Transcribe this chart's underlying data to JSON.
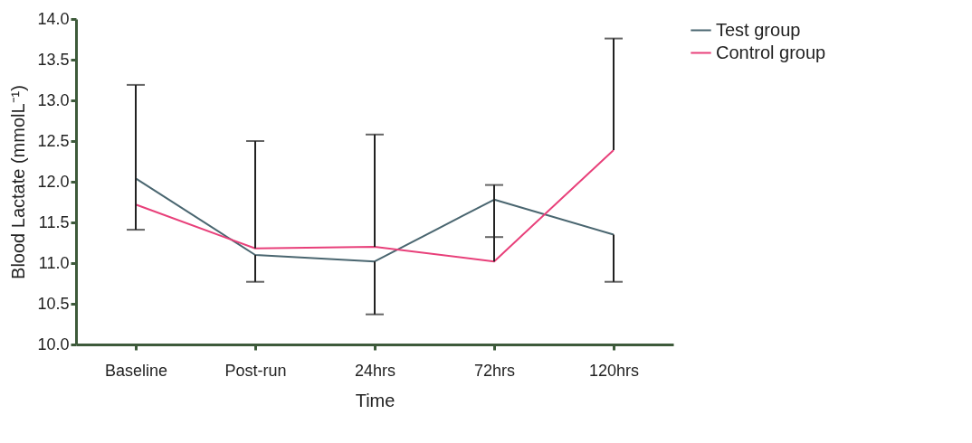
{
  "chart_data": {
    "type": "line",
    "xlabel": "Time",
    "ylabel": "Blood Lactate (mmolL⁻¹)",
    "categories": [
      "Baseline",
      "Post-run",
      "24hrs",
      "72hrs",
      "120hrs"
    ],
    "ylim": [
      10.0,
      14.0
    ],
    "yticks": [
      {
        "value": 10,
        "label": "10.0"
      },
      {
        "value": 10.5,
        "label": "10.5"
      },
      {
        "value": 11,
        "label": "11.0"
      },
      {
        "value": 11.5,
        "label": "11.5"
      },
      {
        "value": 12,
        "label": "12.0"
      },
      {
        "value": 12.5,
        "label": "12.5"
      },
      {
        "value": 13,
        "label": "13.0"
      },
      {
        "value": 13.5,
        "label": "13.5"
      },
      {
        "value": 14,
        "label": "14.0"
      }
    ],
    "grid": false,
    "legend": "right",
    "marker": "none",
    "line_style": "solid",
    "series": [
      {
        "name": "Test group",
        "color": "#4a6670",
        "values": [
          12.04,
          11.1,
          11.02,
          11.78,
          11.35
        ],
        "errors": [
          [
            11.41,
            12.04
          ],
          [
            10.77,
            11.1
          ],
          [
            10.37,
            11.02
          ],
          [
            11.32,
            11.78
          ],
          [
            10.77,
            11.35
          ]
        ]
      },
      {
        "name": "Control group",
        "color": "#e8407a",
        "values": [
          11.72,
          11.18,
          11.2,
          11.02,
          12.39
        ],
        "errors": [
          [
            11.72,
            13.19
          ],
          [
            11.18,
            12.5
          ],
          [
            11.2,
            12.58
          ],
          [
            11.02,
            11.96
          ],
          [
            12.39,
            13.76
          ]
        ]
      }
    ]
  }
}
